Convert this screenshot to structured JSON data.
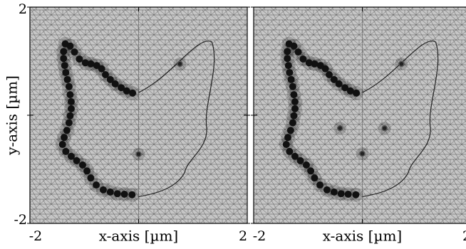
{
  "chart_data": [
    {
      "type": "scatter",
      "xlabel": "x-axis [µm]",
      "ylabel": "y-axis [µm]",
      "xlim": [
        -2,
        2
      ],
      "ylim": [
        -2,
        2
      ],
      "xticks": [
        -2,
        {
          "value": 0,
          "label": null
        },
        2
      ],
      "yticks": [
        -2,
        {
          "value": 0,
          "label": null
        },
        2
      ],
      "ytick_labels": true,
      "series": [
        {
          "color": "#111111",
          "x": [
            -0.11,
            -0.22,
            -0.32,
            -0.43,
            -0.52,
            -0.61,
            -0.68,
            -0.77,
            -0.88,
            -0.98,
            -1.09,
            -1.18,
            -1.26,
            -1.35,
            -1.38,
            -1.38,
            -1.36,
            -1.34,
            -1.31,
            -1.28,
            -1.26,
            -1.24,
            -1.24,
            -1.26,
            -1.28,
            -1.32,
            -1.37,
            -1.4,
            -1.34,
            -1.24,
            -1.14,
            -1.03,
            -0.95,
            -0.88,
            -0.78,
            -0.65,
            -0.52,
            -0.39,
            -0.26,
            -0.12
          ],
          "y": [
            0.41,
            0.45,
            0.51,
            0.58,
            0.66,
            0.75,
            0.86,
            0.92,
            0.95,
            0.97,
            1.04,
            1.17,
            1.28,
            1.32,
            1.18,
            1.05,
            0.92,
            0.79,
            0.66,
            0.53,
            0.38,
            0.25,
            0.12,
            -0.01,
            -0.14,
            -0.28,
            -0.41,
            -0.54,
            -0.67,
            -0.76,
            -0.84,
            -0.92,
            -1.03,
            -1.16,
            -1.29,
            -1.38,
            -1.42,
            -1.45,
            -1.46,
            -1.47
          ]
        },
        {
          "color": "#222222",
          "x": [
            0.76,
            0.0
          ],
          "y": [
            0.95,
            -0.72
          ]
        }
      ]
    },
    {
      "type": "scatter",
      "xlabel": "x-axis [µm]",
      "xlim": [
        -2,
        2
      ],
      "ylim": [
        -2,
        2
      ],
      "xticks": [
        -2,
        {
          "value": 0,
          "label": null
        },
        2
      ],
      "yticks": [
        -2,
        {
          "value": 0,
          "label": null
        },
        2
      ],
      "ytick_labels": false,
      "series": [
        {
          "color": "#111111",
          "x": [
            -0.11,
            -0.22,
            -0.32,
            -0.43,
            -0.52,
            -0.61,
            -0.68,
            -0.77,
            -0.88,
            -0.98,
            -1.09,
            -1.18,
            -1.26,
            -1.35,
            -1.38,
            -1.38,
            -1.36,
            -1.34,
            -1.31,
            -1.28,
            -1.26,
            -1.24,
            -1.24,
            -1.26,
            -1.28,
            -1.32,
            -1.37,
            -1.4,
            -1.34,
            -1.24,
            -1.14,
            -1.03,
            -0.95,
            -0.88,
            -0.78,
            -0.65,
            -0.52,
            -0.39,
            -0.26,
            -0.12
          ],
          "y": [
            0.41,
            0.45,
            0.51,
            0.58,
            0.66,
            0.75,
            0.86,
            0.92,
            0.95,
            0.97,
            1.04,
            1.17,
            1.28,
            1.32,
            1.18,
            1.05,
            0.92,
            0.79,
            0.66,
            0.53,
            0.38,
            0.25,
            0.12,
            -0.01,
            -0.14,
            -0.28,
            -0.41,
            -0.54,
            -0.67,
            -0.76,
            -0.84,
            -0.92,
            -1.03,
            -1.16,
            -1.29,
            -1.38,
            -1.42,
            -1.45,
            -1.46,
            -1.47
          ]
        },
        {
          "color": "#222222",
          "x": [
            0.72,
            -0.41,
            0.41,
            0.0
          ],
          "y": [
            0.95,
            -0.24,
            -0.24,
            -0.71
          ]
        }
      ]
    }
  ]
}
